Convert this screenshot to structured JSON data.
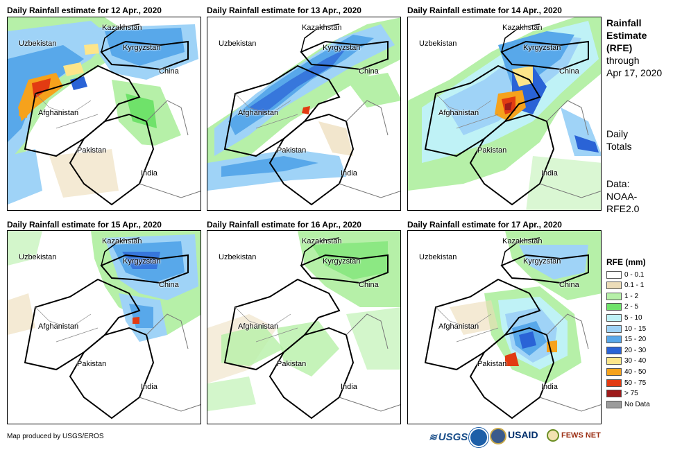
{
  "panels": [
    {
      "title": "Daily Rainfall estimate for 12 Apr., 2020",
      "date": "12 Apr."
    },
    {
      "title": "Daily Rainfall estimate for 13 Apr., 2020",
      "date": "13 Apr."
    },
    {
      "title": "Daily Rainfall estimate for 14 Apr., 2020",
      "date": "14 Apr."
    },
    {
      "title": "Daily Rainfall estimate for 15 Apr., 2020",
      "date": "15 Apr."
    },
    {
      "title": "Daily Rainfall estimate for 16 Apr., 2020",
      "date": "16 Apr."
    },
    {
      "title": "Daily Rainfall estimate for 17 Apr., 2020",
      "date": "17 Apr."
    }
  ],
  "country_labels": {
    "kazakhstan": "Kazakhstan",
    "uzbekistan": "Uzbekistan",
    "kyrgyzstan": "Kyrgyzstan",
    "china": "China",
    "afghanistan": "Afghanistan",
    "pakistan": "Pakistan",
    "india": "India"
  },
  "side": {
    "title_line1": "Rainfall",
    "title_line2": "Estimate",
    "title_line3": "(RFE)",
    "through": "through",
    "through_date": "Apr 17, 2020",
    "daily1": "Daily",
    "daily2": "Totals",
    "data1": "Data:",
    "data2": "NOAA-",
    "data3": "RFE2.0"
  },
  "legend": {
    "title": "RFE (mm)",
    "items": [
      {
        "label": "0 - 0.1",
        "color": "#ffffff"
      },
      {
        "label": "0.1 - 1",
        "color": "#ecdcb8"
      },
      {
        "label": "1 - 2",
        "color": "#b6f0a8"
      },
      {
        "label": "2 - 5",
        "color": "#6fe26a"
      },
      {
        "label": "5 - 10",
        "color": "#bff2f6"
      },
      {
        "label": "10 - 15",
        "color": "#9fd3f7"
      },
      {
        "label": "15 - 20",
        "color": "#58a8ea"
      },
      {
        "label": "20 - 30",
        "color": "#2a63d6"
      },
      {
        "label": "30 - 40",
        "color": "#fde58a"
      },
      {
        "label": "40 - 50",
        "color": "#f6a21c"
      },
      {
        "label": "50 - 75",
        "color": "#e23b12"
      },
      {
        "label": "> 75",
        "color": "#9e1b1b"
      },
      {
        "label": "No Data",
        "color": "#9b9b9b"
      }
    ]
  },
  "credit": "Map produced by USGS/EROS",
  "logos": {
    "usgs": "USGS",
    "usaid": "USAID",
    "fews": "FEWS NET",
    "noaa": "NOAA",
    "dos": "Department of State"
  }
}
